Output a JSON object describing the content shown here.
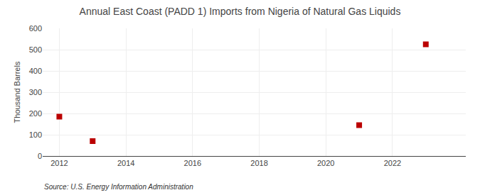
{
  "chart_data": {
    "type": "scatter",
    "title": "Annual East Coast (PADD 1) Imports from Nigeria of Natural Gas Liquids",
    "ylabel": "Thousand Barrels",
    "annotations": [
      "Source: U.S. Energy Information Administration"
    ],
    "x": [
      2012,
      2013,
      2021,
      2023
    ],
    "values": [
      185,
      70,
      145,
      525
    ],
    "color": "#bb0000",
    "marker": "square",
    "xlim": [
      2011.5,
      2024.2
    ],
    "ylim": [
      0,
      600
    ],
    "xticks": [
      2012,
      2014,
      2016,
      2018,
      2020,
      2022
    ],
    "yticks": [
      0,
      100,
      200,
      300,
      400,
      500,
      600
    ],
    "grid": true
  }
}
